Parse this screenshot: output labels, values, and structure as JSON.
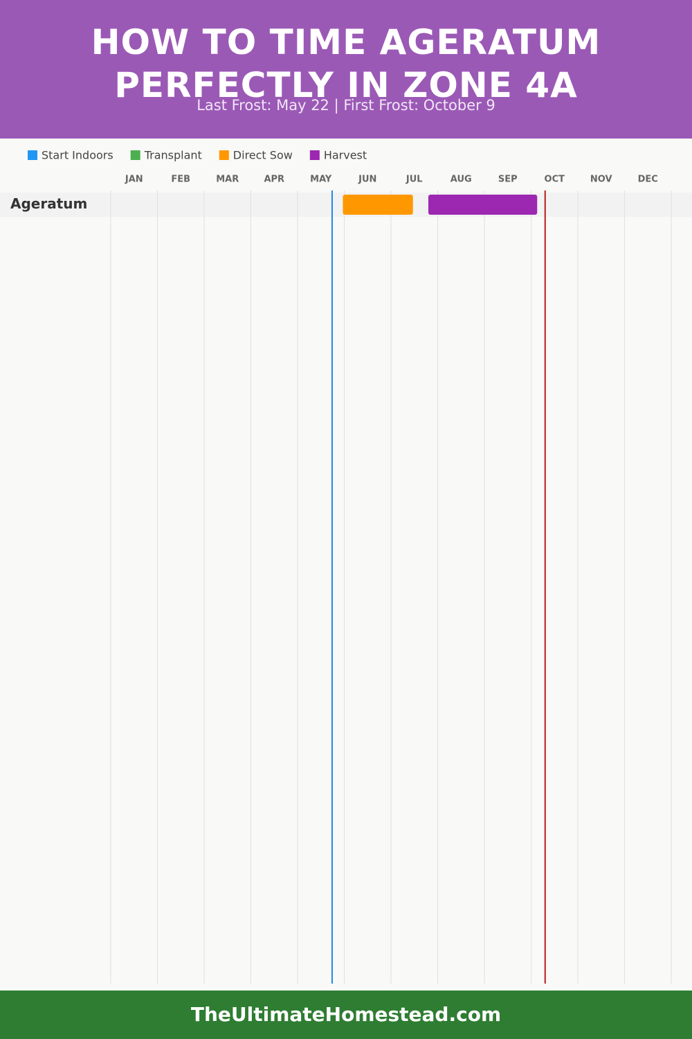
{
  "chart_data": {
    "type": "gantt",
    "title": "HOW TO TIME AGERATUM PERFECTLY IN ZONE 4A",
    "subtitle": "Last Frost: May 22 | First Frost: October 9",
    "categories": [
      "Ageratum"
    ],
    "series": [
      {
        "name": "Start Indoors",
        "color": "#2196f3",
        "values": [
          null
        ]
      },
      {
        "name": "Transplant",
        "color": "#4caf50",
        "values": [
          null
        ]
      },
      {
        "name": "Direct Sow",
        "color": "#ff9800",
        "values": [
          [
            4.97,
            6.47
          ]
        ]
      },
      {
        "name": "Harvest",
        "color": "#9c27b0",
        "values": [
          [
            6.8,
            9.13
          ]
        ]
      }
    ],
    "xlim": [
      0,
      12
    ],
    "xticks": [
      {
        "value": 0.5,
        "label": "JAN"
      },
      {
        "value": 1.5,
        "label": "FEB"
      },
      {
        "value": 2.5,
        "label": "MAR"
      },
      {
        "value": 3.5,
        "label": "APR"
      },
      {
        "value": 4.5,
        "label": "MAY"
      },
      {
        "value": 5.5,
        "label": "JUN"
      },
      {
        "value": 6.5,
        "label": "JUL"
      },
      {
        "value": 7.5,
        "label": "AUG"
      },
      {
        "value": 8.5,
        "label": "SEP"
      },
      {
        "value": 9.5,
        "label": "OCT"
      },
      {
        "value": 10.5,
        "label": "NOV"
      },
      {
        "value": 11.5,
        "label": "DEC"
      }
    ],
    "xgrid": [
      0,
      1,
      2,
      3,
      4,
      5,
      6,
      7,
      8,
      9,
      10,
      11,
      12
    ],
    "frost_lines": [
      {
        "value": 4.74,
        "color": "#1e88e5"
      },
      {
        "value": 9.3,
        "color": "#b71c1c"
      }
    ],
    "footer": "TheUltimateHomestead.com"
  }
}
